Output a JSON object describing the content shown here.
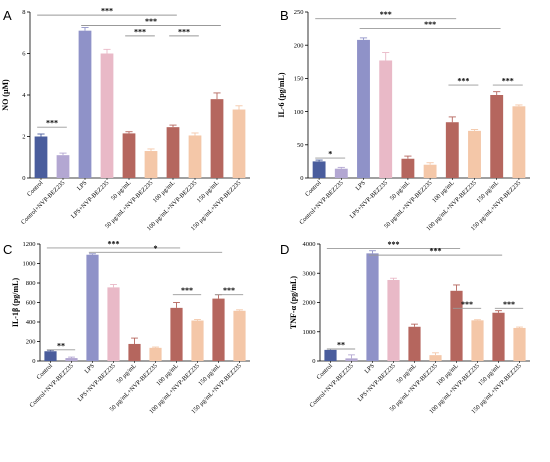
{
  "chart_data": [
    {
      "type": "bar",
      "panel": "A",
      "ylabel": "NO (μM)",
      "ylim": [
        0,
        8
      ],
      "yticks": [
        "0",
        "2",
        "4",
        "6",
        "8"
      ],
      "categories": [
        "Control",
        "Control+NVP-BEZ235",
        "LPS",
        "LPS+NVP-BEZ235",
        "50 μg/mL",
        "50 μg/mL+NVP-BEZ235",
        "100 μg/mL",
        "100 μg/mL+NVP-BEZ235",
        "150 μg/mL",
        "150 μg/mL+NVP-BEZ235"
      ],
      "values": [
        2.0,
        1.1,
        7.1,
        6.0,
        2.15,
        1.3,
        2.45,
        2.05,
        3.8,
        3.3
      ],
      "errors": [
        0.12,
        0.1,
        0.15,
        0.2,
        0.08,
        0.1,
        0.1,
        0.12,
        0.3,
        0.18
      ],
      "significance": [
        {
          "from": 0,
          "to": 1,
          "label": "***",
          "y": 2.45
        },
        {
          "from": 0,
          "to": 6,
          "label": "***",
          "y": 7.85
        },
        {
          "from": 2,
          "to": 8,
          "label": "***",
          "y": 7.35
        },
        {
          "from": 4,
          "to": 5,
          "label": "***",
          "y": 6.85
        },
        {
          "from": 6,
          "to": 7,
          "label": "***",
          "y": 6.85
        }
      ]
    },
    {
      "type": "bar",
      "panel": "B",
      "ylabel": "IL-6 (pg/mL)",
      "ylim": [
        0,
        250
      ],
      "yticks": [
        "0",
        "50",
        "100",
        "150",
        "200",
        "250"
      ],
      "categories": [
        "Control",
        "Control+NVP-BEZ235",
        "LPS",
        "LPS+NVP-BEZ235",
        "50 μg/mL",
        "50 μg/mL+NVP-BEZ235",
        "100 μg/mL",
        "100 μg/mL+NVP-BEZ235",
        "150 μg/mL",
        "150 μg/mL+NVP-BEZ235"
      ],
      "values": [
        25,
        14,
        208,
        177,
        29,
        20,
        84,
        71,
        125,
        108
      ],
      "errors": [
        2,
        2,
        3,
        12,
        4,
        3,
        8,
        2,
        5,
        2
      ],
      "significance": [
        {
          "from": 0,
          "to": 1,
          "label": "*",
          "y": 30
        },
        {
          "from": 0,
          "to": 6,
          "label": "***",
          "y": 240
        },
        {
          "from": 2,
          "to": 8,
          "label": "***",
          "y": 225
        },
        {
          "from": 6,
          "to": 7,
          "label": "***",
          "y": 140
        },
        {
          "from": 8,
          "to": 9,
          "label": "***",
          "y": 140
        }
      ]
    },
    {
      "type": "bar",
      "panel": "C",
      "ylabel": "IL-1β (pg/mL)",
      "ylim": [
        0,
        1200
      ],
      "yticks": [
        "0",
        "200",
        "400",
        "600",
        "800",
        "1000",
        "1200"
      ],
      "categories": [
        "Control",
        "Control+NVP-BEZ235",
        "LPS",
        "LPS+NVP-BEZ235",
        "50 μg/mL",
        "50 μg/mL+NVP-BEZ235",
        "100 μg/mL",
        "100 μg/mL+NVP-BEZ235",
        "150 μg/mL",
        "150 μg/mL+NVP-BEZ235"
      ],
      "values": [
        100,
        30,
        1090,
        755,
        175,
        135,
        545,
        415,
        640,
        515
      ],
      "errors": [
        10,
        10,
        10,
        30,
        60,
        8,
        55,
        10,
        40,
        10
      ],
      "significance": [
        {
          "from": 0,
          "to": 1,
          "label": "**",
          "y": 115
        },
        {
          "from": 0,
          "to": 6,
          "label": "***",
          "y": 1160
        },
        {
          "from": 2,
          "to": 8,
          "label": "*",
          "y": 1115
        },
        {
          "from": 6,
          "to": 7,
          "label": "***",
          "y": 680
        },
        {
          "from": 8,
          "to": 9,
          "label": "***",
          "y": 680
        }
      ]
    },
    {
      "type": "bar",
      "panel": "D",
      "ylabel": "TNF-α (pg/mL)",
      "ylim": [
        0,
        4000
      ],
      "yticks": [
        "0",
        "1000",
        "2000",
        "3000",
        "4000"
      ],
      "categories": [
        "Control",
        "Control+NVP-BEZ235",
        "LPS",
        "LPS+NVP-BEZ235",
        "50 μg/mL",
        "50 μg/mL+NVP-BEZ235",
        "100 μg/mL",
        "100 μg/mL+NVP-BEZ235",
        "150 μg/mL",
        "150 μg/mL+NVP-BEZ235"
      ],
      "values": [
        380,
        90,
        3680,
        2770,
        1170,
        200,
        2400,
        1390,
        1650,
        1130
      ],
      "errors": [
        30,
        120,
        90,
        60,
        90,
        80,
        200,
        20,
        70,
        30
      ],
      "significance": [
        {
          "from": 0,
          "to": 1,
          "label": "**",
          "y": 410
        },
        {
          "from": 0,
          "to": 6,
          "label": "***",
          "y": 3850
        },
        {
          "from": 2,
          "to": 8,
          "label": "***",
          "y": 3620
        },
        {
          "from": 6,
          "to": 7,
          "label": "***",
          "y": 1800
        },
        {
          "from": 8,
          "to": 9,
          "label": "***",
          "y": 1800
        }
      ]
    }
  ],
  "colors": [
    "#4a5d9d",
    "#b3a7d2",
    "#8f92c8",
    "#e9b9c7",
    "#b5665e",
    "#f4c7a8",
    "#b5665e",
    "#f4c7a8",
    "#b5665e",
    "#f4c7a8"
  ],
  "axis_color": "#000000",
  "sig_line_color": "#999999"
}
